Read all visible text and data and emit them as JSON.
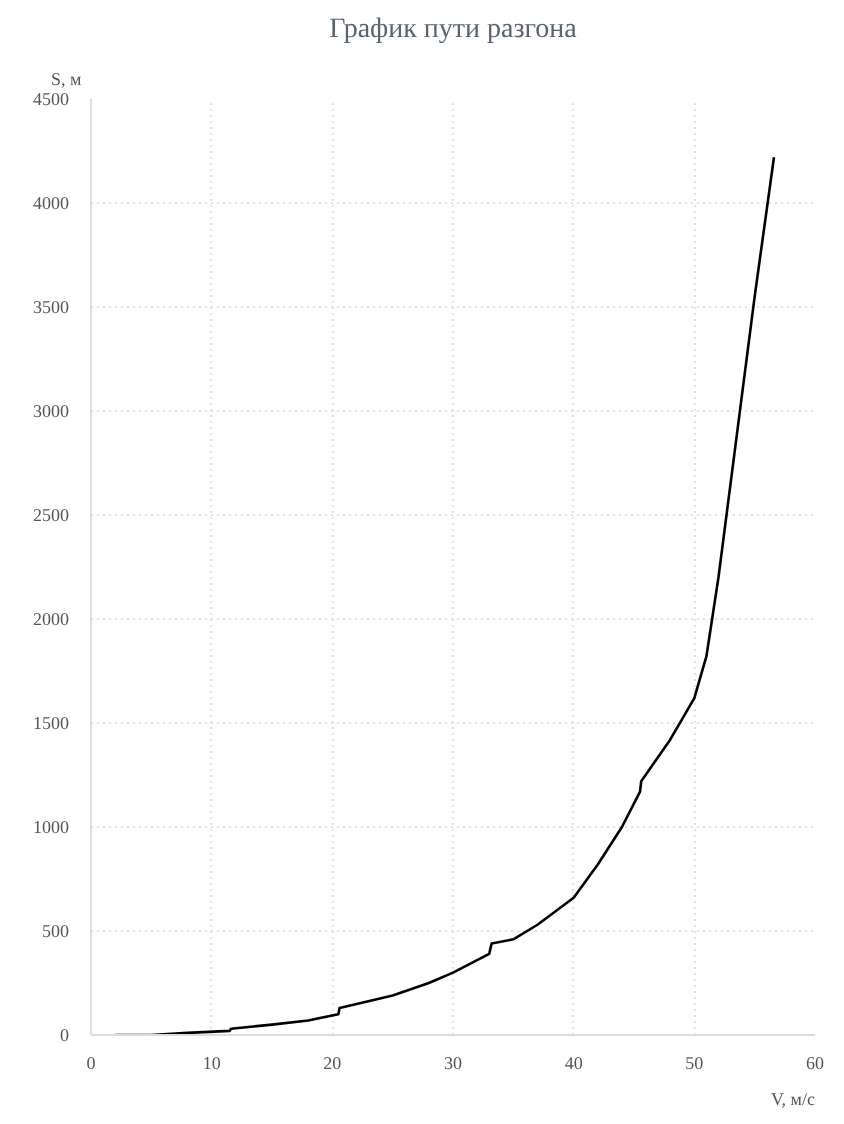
{
  "chart_data": {
    "type": "line",
    "title": "График пути разгона",
    "xlabel": "V, м/с",
    "ylabel": "S, м",
    "x": [
      2,
      5,
      8,
      11.5,
      11.6,
      15,
      18,
      20.5,
      20.6,
      25,
      28,
      30,
      33,
      33.2,
      35,
      37,
      40,
      42,
      44,
      45.5,
      45.6,
      48,
      50,
      51,
      52,
      53,
      54,
      55,
      56.6
    ],
    "series": [
      {
        "color": "#000000",
        "values": [
          0,
          0,
          10,
          20,
          30,
          50,
          70,
          100,
          130,
          190,
          250,
          300,
          390,
          440,
          460,
          530,
          660,
          820,
          1000,
          1170,
          1220,
          1420,
          1620,
          1820,
          2200,
          2650,
          3100,
          3550,
          4220
        ]
      }
    ],
    "xlim": [
      0,
      60
    ],
    "xticks": [
      0,
      10,
      20,
      30,
      40,
      50,
      60
    ],
    "ylim": [
      0,
      4500
    ],
    "yticks": [
      0,
      500,
      1000,
      1500,
      2000,
      2500,
      3000,
      3500,
      4000,
      4500
    ],
    "grid": true,
    "marker": "none",
    "line_style": "solid"
  }
}
